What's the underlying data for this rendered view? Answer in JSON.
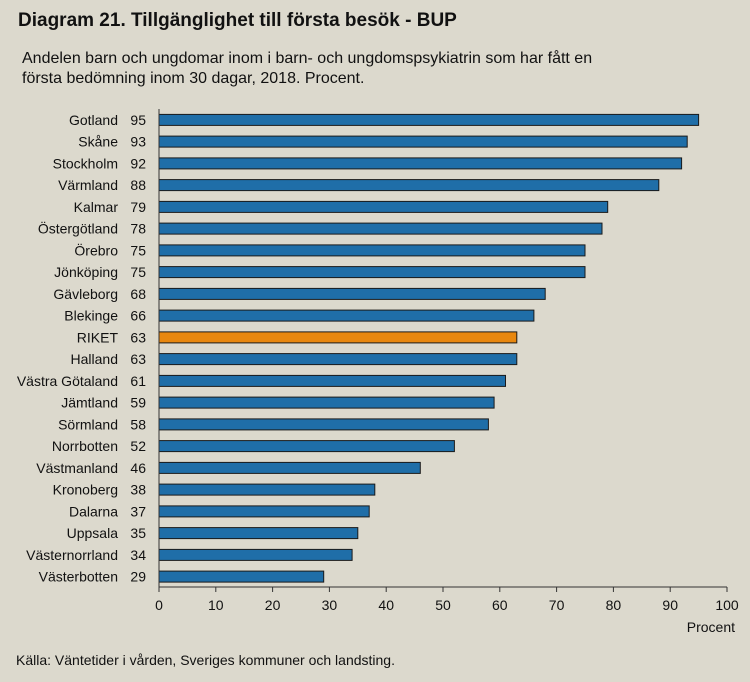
{
  "title": "Diagram 21. Tillgänglighet till första besök - BUP",
  "subtitle_line1": "Andelen barn och ungdomar inom i barn- och ungdomspsykiatrin som har fått en",
  "subtitle_line2": "första bedömning inom 30 dagar, 2018. Procent.",
  "source": "Källa: Väntetider i vården, Sveriges kommuner och landsting.",
  "colors": {
    "bar": "#1f6ea8",
    "highlight": "#e8870e",
    "background": "#dcd9cd"
  },
  "chart_data": {
    "type": "bar",
    "orientation": "horizontal",
    "title": "Diagram 21. Tillgänglighet till första besök - BUP",
    "xlabel": "Procent",
    "ylabel": "",
    "xlim": [
      0,
      100
    ],
    "xticks": [
      0,
      10,
      20,
      30,
      40,
      50,
      60,
      70,
      80,
      90,
      100
    ],
    "grid": false,
    "categories": [
      "Gotland",
      "Skåne",
      "Stockholm",
      "Värmland",
      "Kalmar",
      "Östergötland",
      "Örebro",
      "Jönköping",
      "Gävleborg",
      "Blekinge",
      "RIKET",
      "Halland",
      "Västra Götaland",
      "Jämtland",
      "Sörmland",
      "Norrbotten",
      "Västmanland",
      "Kronoberg",
      "Dalarna",
      "Uppsala",
      "Västernorrland",
      "Västerbotten"
    ],
    "values": [
      95,
      93,
      92,
      88,
      79,
      78,
      75,
      75,
      68,
      66,
      63,
      63,
      61,
      59,
      58,
      52,
      46,
      38,
      37,
      35,
      34,
      29
    ],
    "highlight_category": "RIKET"
  }
}
